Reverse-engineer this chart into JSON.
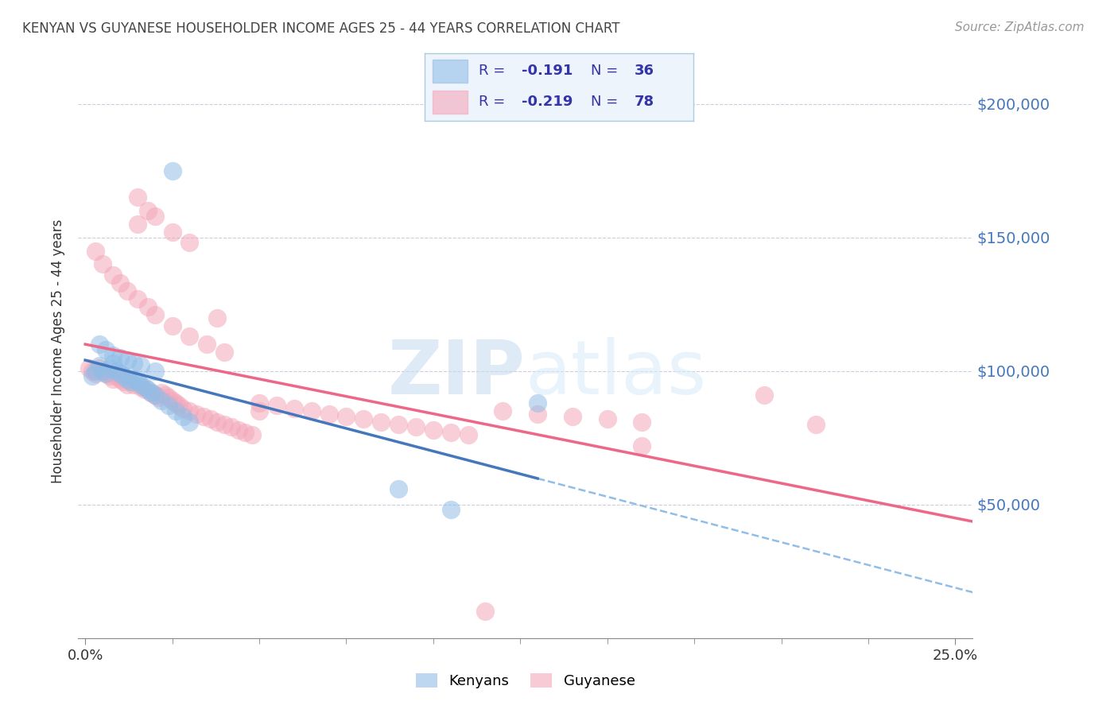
{
  "title": "KENYAN VS GUYANESE HOUSEHOLDER INCOME AGES 25 - 44 YEARS CORRELATION CHART",
  "source": "Source: ZipAtlas.com",
  "ylabel": "Householder Income Ages 25 - 44 years",
  "ytick_labels": [
    "$50,000",
    "$100,000",
    "$150,000",
    "$200,000"
  ],
  "ytick_vals": [
    50000,
    100000,
    150000,
    200000
  ],
  "ylim": [
    0,
    215000
  ],
  "xlim": [
    -0.002,
    0.255
  ],
  "kenyan_color": "#92BDE7",
  "guyanese_color": "#F4A7B9",
  "kenyan_line_color": "#4477BB",
  "guyanese_line_color": "#EE6688",
  "kenyan_dash_color": "#92BDE7",
  "axis_label_color": "#4477BB",
  "text_color": "#3333AA",
  "title_color": "#444444",
  "source_color": "#999999",
  "watermark_color": "#D5E8F5",
  "grid_color": "#CCCCDD",
  "legend_bg_color": "#EEF4FC",
  "legend_border_color": "#AACCDD",
  "kenyan_R": "-0.191",
  "kenyan_N": "36",
  "guyanese_R": "-0.219",
  "guyanese_N": "78",
  "watermark": "ZIPatlas",
  "background_color": "#FFFFFF",
  "kenyan_x": [
    0.002,
    0.003,
    0.004,
    0.005,
    0.006,
    0.007,
    0.008,
    0.009,
    0.01,
    0.011,
    0.012,
    0.013,
    0.014,
    0.015,
    0.016,
    0.017,
    0.018,
    0.019,
    0.02,
    0.022,
    0.024,
    0.026,
    0.028,
    0.03,
    0.004,
    0.006,
    0.008,
    0.01,
    0.012,
    0.014,
    0.016,
    0.02,
    0.025,
    0.09,
    0.105,
    0.13
  ],
  "kenyan_y": [
    98000,
    100000,
    102000,
    100000,
    99000,
    101000,
    103000,
    100000,
    99000,
    98000,
    97000,
    96000,
    97000,
    96000,
    95000,
    94000,
    93000,
    92000,
    91000,
    89000,
    87000,
    85000,
    83000,
    81000,
    110000,
    108000,
    106000,
    105000,
    104000,
    103000,
    102000,
    100000,
    175000,
    56000,
    48000,
    88000
  ],
  "guyanese_x": [
    0.001,
    0.002,
    0.003,
    0.004,
    0.005,
    0.006,
    0.007,
    0.008,
    0.009,
    0.01,
    0.011,
    0.012,
    0.013,
    0.014,
    0.015,
    0.016,
    0.017,
    0.018,
    0.019,
    0.02,
    0.021,
    0.022,
    0.023,
    0.024,
    0.025,
    0.026,
    0.027,
    0.028,
    0.03,
    0.032,
    0.034,
    0.036,
    0.038,
    0.04,
    0.042,
    0.044,
    0.046,
    0.048,
    0.05,
    0.055,
    0.06,
    0.065,
    0.07,
    0.075,
    0.08,
    0.085,
    0.09,
    0.095,
    0.1,
    0.105,
    0.11,
    0.12,
    0.13,
    0.14,
    0.15,
    0.16,
    0.003,
    0.005,
    0.008,
    0.01,
    0.012,
    0.015,
    0.018,
    0.02,
    0.025,
    0.03,
    0.035,
    0.04,
    0.015,
    0.02,
    0.025,
    0.03,
    0.038,
    0.05,
    0.115,
    0.16,
    0.195,
    0.21
  ],
  "guyanese_y": [
    101000,
    100000,
    99000,
    101000,
    100000,
    99000,
    98000,
    97000,
    98000,
    97000,
    96000,
    95000,
    96000,
    95000,
    155000,
    94000,
    93000,
    160000,
    92000,
    91000,
    90000,
    92000,
    91000,
    90000,
    89000,
    88000,
    87000,
    86000,
    85000,
    84000,
    83000,
    82000,
    81000,
    80000,
    79000,
    78000,
    77000,
    76000,
    88000,
    87000,
    86000,
    85000,
    84000,
    83000,
    82000,
    81000,
    80000,
    79000,
    78000,
    77000,
    76000,
    85000,
    84000,
    83000,
    82000,
    81000,
    145000,
    140000,
    136000,
    133000,
    130000,
    127000,
    124000,
    121000,
    117000,
    113000,
    110000,
    107000,
    165000,
    158000,
    152000,
    148000,
    120000,
    85000,
    10000,
    72000,
    91000,
    80000
  ]
}
